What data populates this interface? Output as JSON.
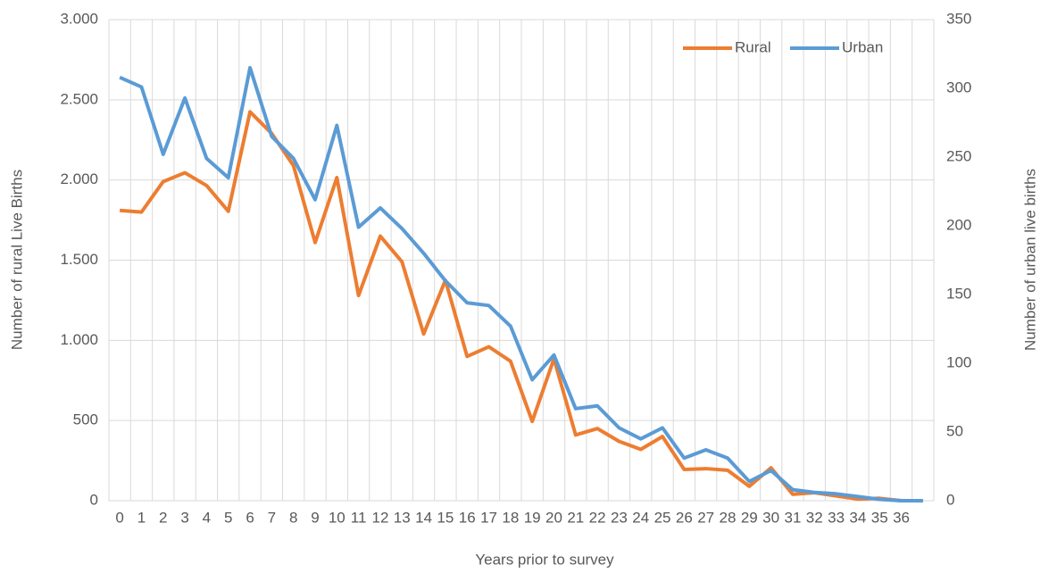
{
  "chart_data": {
    "type": "line",
    "x_label": "Years prior to survey",
    "y_label": "Number of rural Live Births",
    "y2_label": "Number of urban live births",
    "categories": [
      "0",
      "1",
      "2",
      "3",
      "4",
      "5",
      "6",
      "7",
      "8",
      "9",
      "10",
      "11",
      "12",
      "13",
      "14",
      "15",
      "16",
      "17",
      "18",
      "19",
      "20",
      "21",
      "22",
      "23",
      "24",
      "25",
      "26",
      "27",
      "28",
      "29",
      "30",
      "31",
      "32",
      "33",
      "34",
      "35",
      "36",
      null
    ],
    "series": [
      {
        "name": "Rural",
        "color": "#ed7d31",
        "values": [
          1810,
          1800,
          1990,
          2045,
          1965,
          1805,
          2425,
          2290,
          2090,
          1610,
          2015,
          1280,
          1650,
          1490,
          1040,
          1375,
          900,
          960,
          870,
          495,
          885,
          410,
          450,
          370,
          320,
          400,
          195,
          200,
          190,
          90,
          205,
          40,
          50,
          30,
          10,
          15,
          0,
          0
        ]
      },
      {
        "name": "Urban",
        "color": "#5b9bd5",
        "axis": "y2",
        "values": [
          308,
          301,
          252,
          293,
          249,
          235,
          315,
          265,
          249,
          219,
          273,
          199,
          213,
          198,
          180,
          160,
          144,
          142,
          127,
          88,
          106,
          67,
          69,
          53,
          45,
          53,
          31,
          37,
          31,
          14,
          22,
          8,
          6,
          5,
          3,
          1,
          0,
          0
        ]
      }
    ],
    "ylim": [
      0,
      3000
    ],
    "yticks": [
      0,
      {
        "value": 500,
        "label": "500"
      },
      {
        "value": 1000,
        "label": "1.000"
      },
      {
        "value": 1500,
        "label": "1.500"
      },
      {
        "value": 2000,
        "label": "2.000"
      },
      {
        "value": 2500,
        "label": "2.500"
      },
      {
        "value": 3000,
        "label": "3.000"
      }
    ],
    "y2lim": [
      0,
      350
    ],
    "y2ticks": [
      0,
      50,
      100,
      150,
      200,
      250,
      300,
      350
    ],
    "grid": true,
    "legend": "top-right"
  }
}
